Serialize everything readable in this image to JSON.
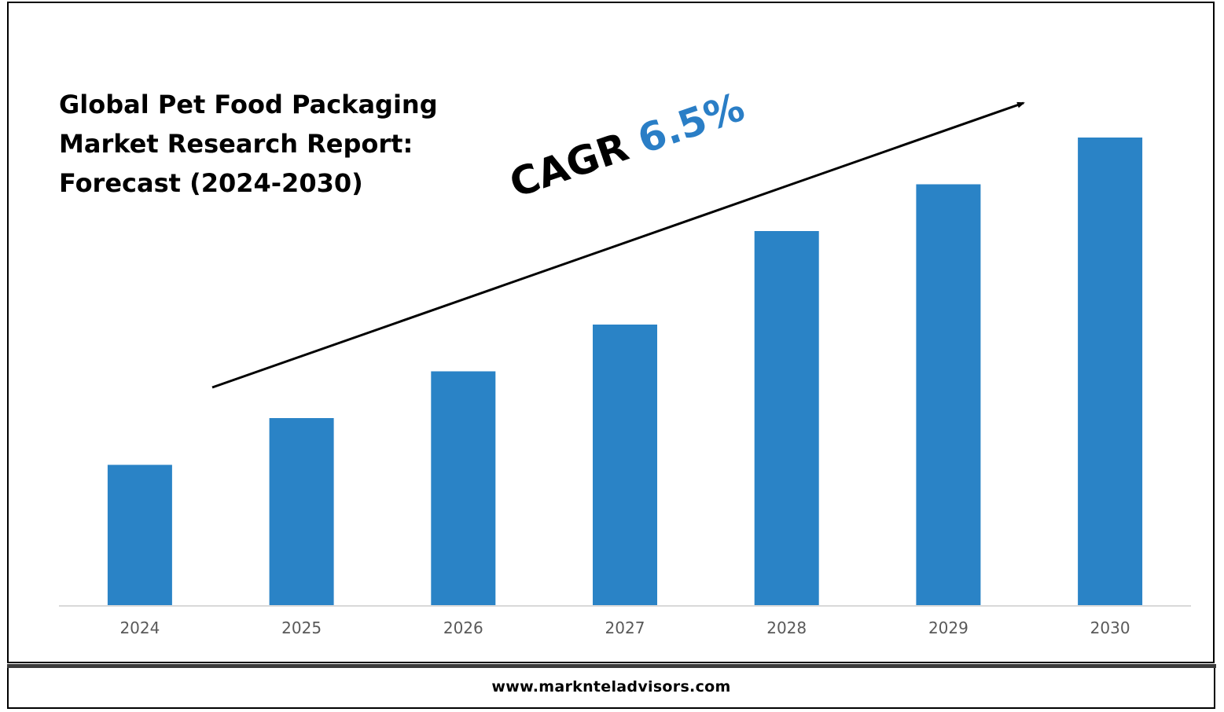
{
  "title_lines": [
    "Global Pet Food Packaging",
    "Market Research Report:",
    "Forecast (2024-2030)"
  ],
  "cagr": {
    "label": "CAGR",
    "value": "6.5%"
  },
  "footer": {
    "url": "www.marknteladvisors.com"
  },
  "colors": {
    "bar": "#2a83c6",
    "cagr_value": "#2a7ec6",
    "axis": "#d9d9d9",
    "tick_label": "#595959"
  },
  "chart_data": {
    "type": "bar",
    "title": "Global Pet Food Packaging Market Research Report: Forecast (2024-2030)",
    "categories": [
      "2024",
      "2025",
      "2026",
      "2027",
      "2028",
      "2029",
      "2030"
    ],
    "values": [
      30,
      40,
      50,
      60,
      80,
      90,
      100
    ],
    "ylim": [
      0,
      100
    ],
    "grid": false,
    "legend": "none",
    "annotation": "CAGR 6.5%"
  }
}
